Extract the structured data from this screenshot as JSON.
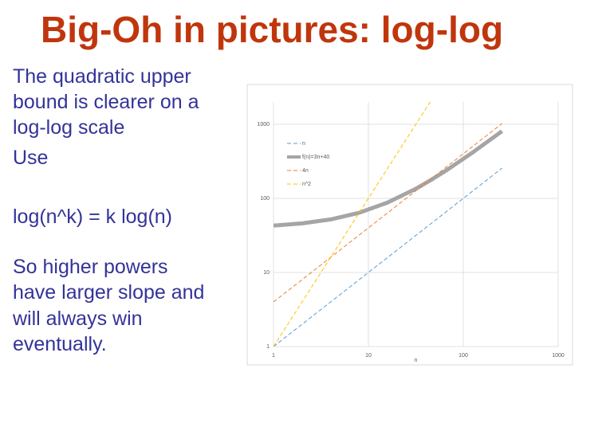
{
  "title": "Big-Oh in pictures: log-log",
  "body": [
    "The quadratic upper",
    "bound is clearer on a",
    "log-log scale",
    "Use",
    "log(n^k) = k log(n)",
    "So higher powers",
    "have larger slope and",
    "will always win",
    "eventually."
  ],
  "chart_data": {
    "type": "line",
    "xlabel": "n",
    "log_x": true,
    "log_y": true,
    "grid": true,
    "legend": "upper-left",
    "x": [
      1,
      2,
      4,
      8,
      16,
      32,
      45,
      64,
      128,
      256
    ],
    "series": [
      {
        "name": "n",
        "color": "#5b9bd5",
        "dashed": true,
        "values": [
          1,
          2,
          4,
          8,
          16,
          32,
          45,
          64,
          128,
          256
        ]
      },
      {
        "name": "f(n)=3n+40",
        "color": "#a5a5a5",
        "dashed": false,
        "values": [
          43,
          46,
          52,
          64,
          88,
          136,
          175,
          232,
          424,
          808
        ]
      },
      {
        "name": "4n",
        "color": "#ed7d31",
        "dashed": true,
        "values": [
          4,
          8,
          16,
          32,
          64,
          128,
          180,
          256,
          512,
          1024
        ]
      },
      {
        "name": "n^2",
        "color": "#ffc000",
        "dashed": true,
        "values": [
          1,
          4,
          16,
          64,
          256,
          1024,
          2025,
          null,
          null,
          null
        ]
      }
    ],
    "xlim": [
      1,
      1000
    ],
    "ylim": [
      1,
      2000
    ],
    "xticks": [
      1,
      10,
      100,
      1000
    ],
    "yticks": [
      1,
      10,
      100,
      1000
    ]
  }
}
